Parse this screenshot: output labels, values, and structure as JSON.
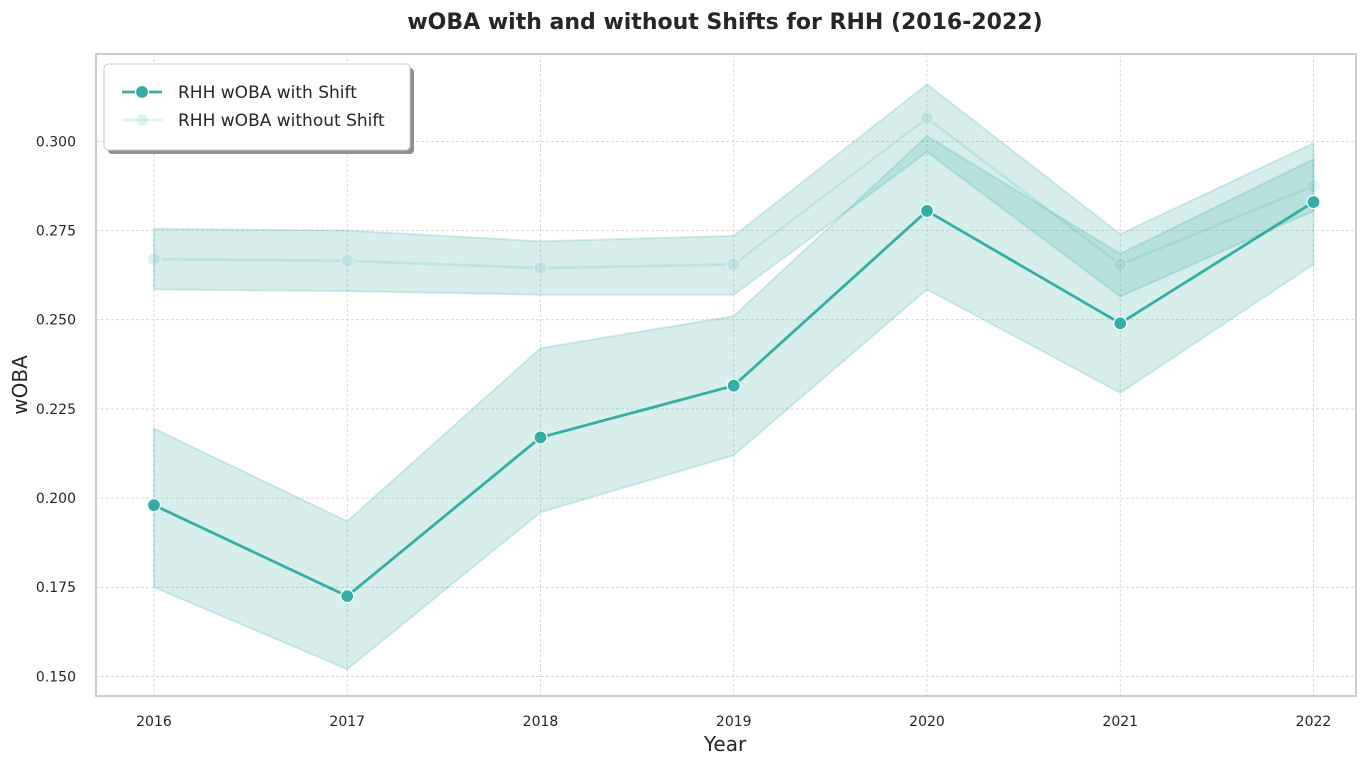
{
  "chart_data": {
    "type": "line",
    "title": "wOBA with and without Shifts for RHH (2016-2022)",
    "xlabel": "Year",
    "ylabel": "wOBA",
    "x": [
      "2016",
      "2017",
      "2018",
      "2019",
      "2020",
      "2021",
      "2022"
    ],
    "x_ticks": [
      "2016",
      "2017",
      "2018",
      "2019",
      "2020",
      "2021",
      "2022"
    ],
    "xlim": [
      2015.7,
      2022.22
    ],
    "ylim": [
      0.1445,
      0.3245
    ],
    "y_ticks": [
      "0.150",
      "0.175",
      "0.200",
      "0.225",
      "0.250",
      "0.275",
      "0.300"
    ],
    "grid": true,
    "legend": "top-left",
    "series": [
      {
        "name": "RHH wOBA with Shift",
        "values": [
          0.198,
          0.1725,
          0.217,
          0.2315,
          0.2805,
          0.249,
          0.283
        ],
        "ci_lower": [
          0.175,
          0.152,
          0.196,
          0.212,
          0.2585,
          0.2295,
          0.2655
        ],
        "ci_upper": [
          0.2195,
          0.1935,
          0.242,
          0.251,
          0.3015,
          0.2685,
          0.295
        ],
        "color": "#36aca5",
        "opacity": 1.0
      },
      {
        "name": "RHH wOBA without Shift",
        "values": [
          0.267,
          0.2665,
          0.2645,
          0.2655,
          0.3065,
          0.2655,
          0.2875
        ],
        "ci_lower": [
          0.2585,
          0.258,
          0.257,
          0.257,
          0.297,
          0.2565,
          0.2805
        ],
        "ci_upper": [
          0.2755,
          0.275,
          0.272,
          0.2735,
          0.316,
          0.274,
          0.2995
        ],
        "color": "#36aca5",
        "opacity": 0.15
      }
    ]
  }
}
